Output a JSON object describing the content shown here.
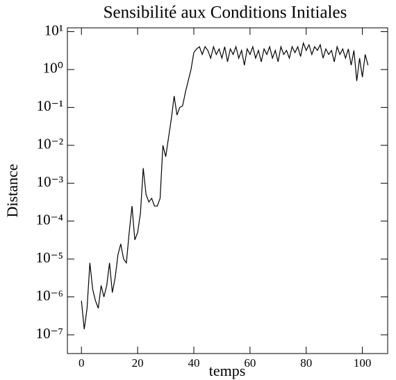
{
  "chart_data": {
    "type": "line",
    "title": "Sensibilité aux Conditions Initiales",
    "xlabel": "temps",
    "ylabel": "Distance",
    "log_y": true,
    "color": "#000000",
    "x": [
      0,
      1,
      2,
      3,
      4,
      5,
      6,
      7,
      8,
      9,
      10,
      11,
      12,
      13,
      14,
      15,
      16,
      17,
      18,
      19,
      20,
      21,
      22,
      23,
      24,
      25,
      26,
      27,
      28,
      29,
      30,
      31,
      32,
      33,
      34,
      35,
      36,
      37,
      38,
      39,
      40,
      41,
      42,
      43,
      44,
      45,
      46,
      47,
      48,
      49,
      50,
      51,
      52,
      53,
      54,
      55,
      56,
      57,
      58,
      59,
      60,
      61,
      62,
      63,
      64,
      65,
      66,
      67,
      68,
      69,
      70,
      71,
      72,
      73,
      74,
      75,
      76,
      77,
      78,
      79,
      80,
      81,
      82,
      83,
      84,
      85,
      86,
      87,
      88,
      89,
      90,
      91,
      92,
      93,
      94,
      95,
      96,
      97,
      98,
      99,
      100,
      101,
      102
    ],
    "values": [
      7.9e-07,
      1.4e-07,
      5e-07,
      7.9e-06,
      1.6e-06,
      7.9e-07,
      5e-07,
      2e-06,
      1e-06,
      2e-06,
      7.9e-06,
      1.3e-06,
      3.2e-06,
      1.3e-05,
      2.5e-05,
      1e-05,
      7.9e-06,
      5e-05,
      0.00025,
      3.2e-05,
      5e-05,
      0.00016,
      0.0025,
      0.0005,
      0.00032,
      0.0004,
      0.00025,
      0.00025,
      0.0004,
      0.01,
      0.005,
      0.016,
      0.05,
      0.2,
      0.063,
      0.1,
      0.11,
      0.25,
      0.5,
      1,
      2.8,
      3.5,
      4,
      2.5,
      4,
      3.2,
      2,
      4,
      2.5,
      3.5,
      2,
      4,
      1.6,
      3.5,
      2.5,
      4,
      2,
      3.2,
      1.3,
      3.5,
      2.5,
      4,
      2,
      3.2,
      1.6,
      3.5,
      2.5,
      4,
      2,
      3.2,
      1.6,
      4,
      2.5,
      3.2,
      2,
      4,
      2.8,
      4,
      2.2,
      5,
      3.2,
      4.5,
      2.5,
      4,
      3.2,
      4.5,
      2,
      3.5,
      2.5,
      3.2,
      1.6,
      4,
      2.5,
      3.5,
      2,
      3.5,
      1.3,
      3.2,
      0.5,
      2,
      0.63,
      2.5,
      1.3
    ],
    "xlim": [
      -5,
      109
    ],
    "xticks": [
      0,
      20,
      40,
      60,
      80,
      100
    ],
    "ylim": [
      3.2e-08,
      12.6
    ],
    "yticks": [
      {
        "value": 1e-07,
        "label": "10⁻⁷"
      },
      {
        "value": 1e-06,
        "label": "10⁻⁶"
      },
      {
        "value": 1e-05,
        "label": "10⁻⁵"
      },
      {
        "value": 0.0001,
        "label": "10⁻⁴"
      },
      {
        "value": 0.001,
        "label": "10⁻³"
      },
      {
        "value": 0.01,
        "label": "10⁻²"
      },
      {
        "value": 0.1,
        "label": "10⁻¹"
      },
      {
        "value": 1,
        "label": "10⁰"
      },
      {
        "value": 10,
        "label": "10¹"
      }
    ]
  }
}
